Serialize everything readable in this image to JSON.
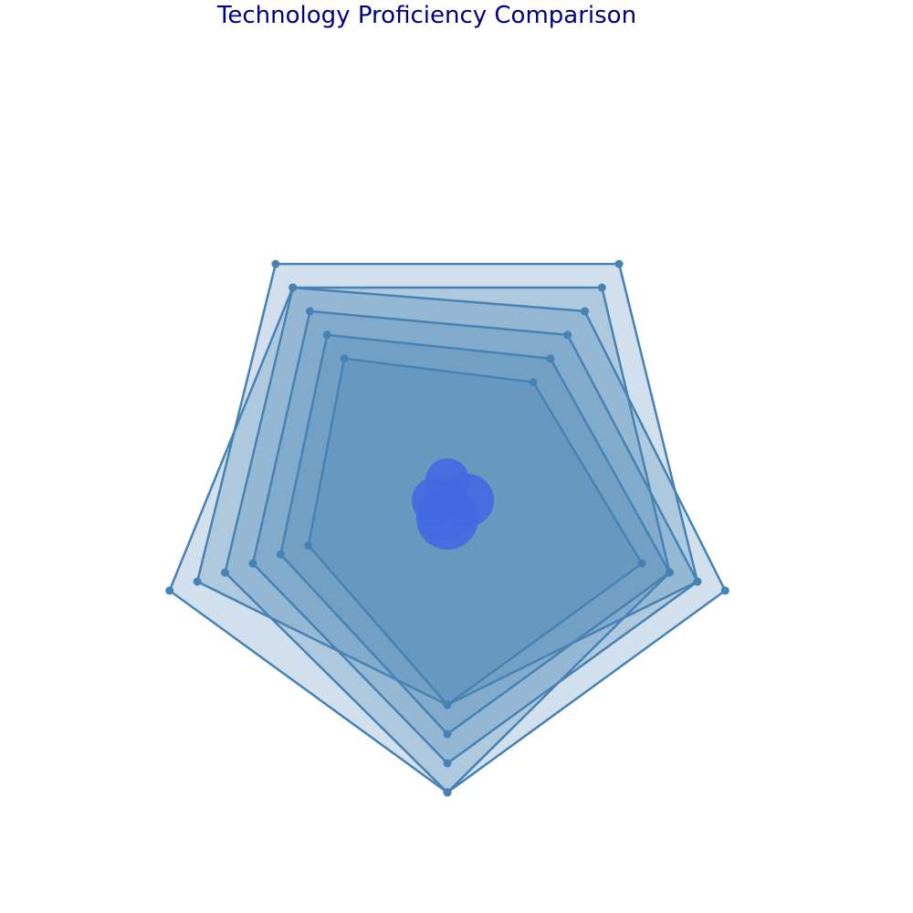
{
  "chart_data": {
    "type": "radar",
    "title": "Technology Proficiency Comparison",
    "r_range": [
      0,
      10
    ],
    "axes_count": 5,
    "grid": false,
    "legend": "none",
    "series": [
      {
        "values": [
          7,
          7,
          5,
          6,
          5
        ]
      },
      {
        "values": [
          8,
          8,
          6,
          7,
          6
        ]
      },
      {
        "values": [
          9,
          9,
          7,
          8,
          7
        ]
      },
      {
        "values": [
          10,
          10,
          8,
          9,
          8
        ]
      },
      {
        "values": [
          9,
          7,
          9,
          10,
          10
        ]
      },
      {
        "values": [
          8,
          10,
          10,
          9,
          9
        ]
      }
    ],
    "colors": {
      "title": "#000080",
      "series_line": "#4682B4",
      "series_fill": "#4682B4",
      "marker": "#4682B4",
      "center_bubbles": "#4169E1"
    },
    "center_bubble_sizes": [
      24,
      25,
      29,
      30,
      34
    ]
  }
}
